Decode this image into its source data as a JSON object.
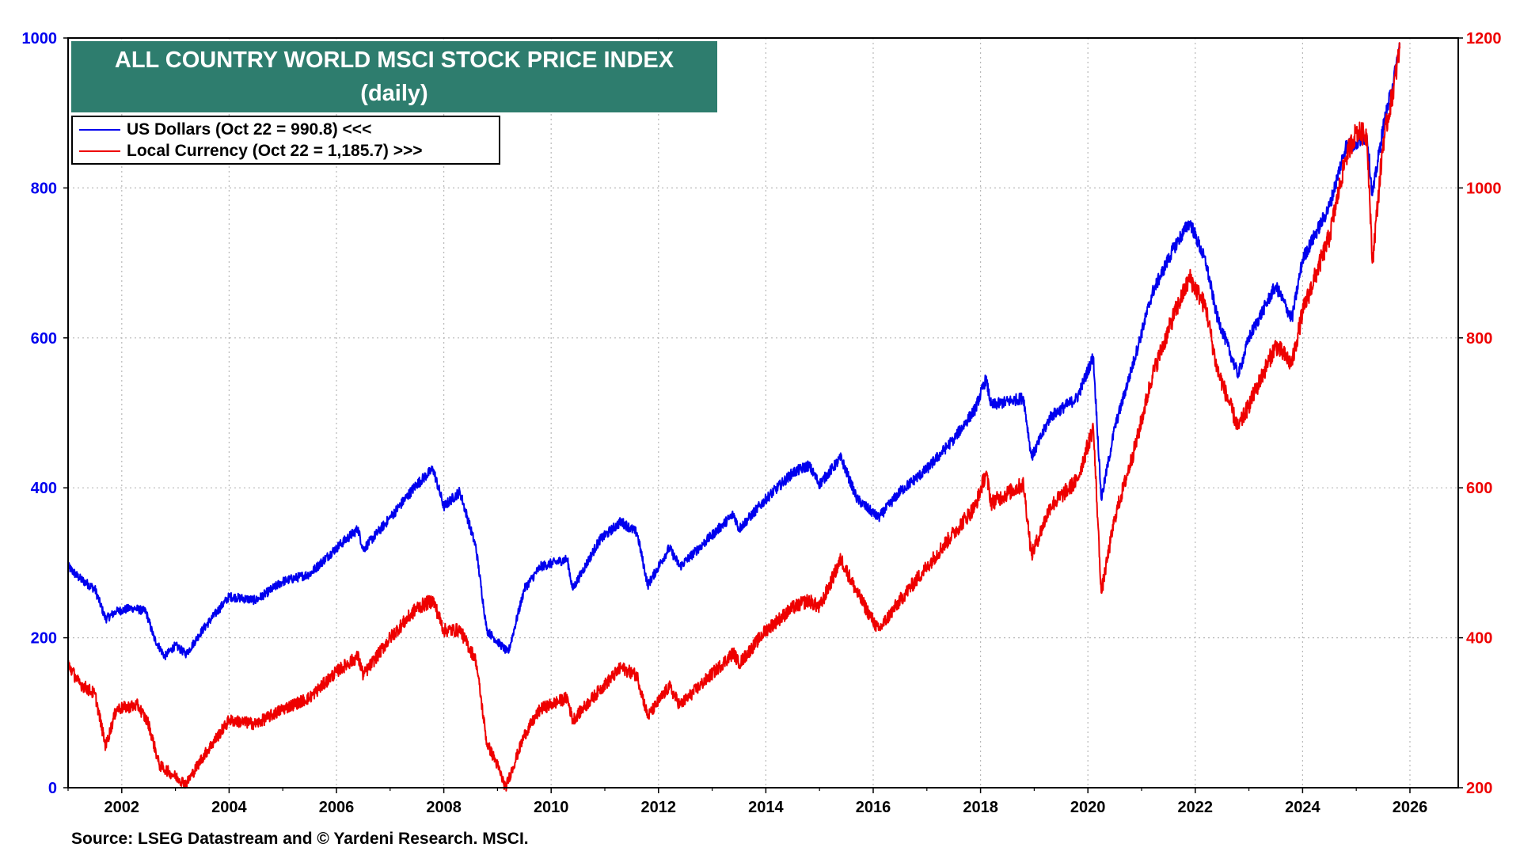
{
  "chart_data": {
    "type": "line",
    "title": "ALL COUNTRY WORLD MSCI STOCK PRICE INDEX",
    "subtitle": "(daily)",
    "source": "Source: LSEG Datastream and © Yardeni Research. MSCI.",
    "x_ticks": [
      "2002",
      "2004",
      "2006",
      "2008",
      "2010",
      "2012",
      "2014",
      "2016",
      "2018",
      "2020",
      "2022",
      "2024",
      "2026"
    ],
    "xlim": [
      2001.0,
      2026.9
    ],
    "left_axis": {
      "ylim": [
        0,
        1000
      ],
      "ticks": [
        "0",
        "200",
        "400",
        "600",
        "800",
        "1000"
      ],
      "color": "#0000ee"
    },
    "right_axis": {
      "ylim": [
        200,
        1200
      ],
      "ticks": [
        "200",
        "400",
        "600",
        "800",
        "1000",
        "1200"
      ],
      "color": "#ee0000"
    },
    "grid": true,
    "legend": {
      "placement": "top-left"
    },
    "series": [
      {
        "name": "US Dollars (Oct 22 = 990.8) <<<",
        "axis": "left",
        "color": "#0000ee",
        "points": [
          [
            2001.0,
            295
          ],
          [
            2001.2,
            280
          ],
          [
            2001.5,
            265
          ],
          [
            2001.7,
            225
          ],
          [
            2001.9,
            235
          ],
          [
            2002.2,
            240
          ],
          [
            2002.45,
            235
          ],
          [
            2002.6,
            200
          ],
          [
            2002.8,
            175
          ],
          [
            2003.0,
            190
          ],
          [
            2003.2,
            178
          ],
          [
            2003.5,
            210
          ],
          [
            2004.0,
            255
          ],
          [
            2004.5,
            250
          ],
          [
            2005.0,
            275
          ],
          [
            2005.5,
            285
          ],
          [
            2006.0,
            320
          ],
          [
            2006.4,
            345
          ],
          [
            2006.5,
            318
          ],
          [
            2007.0,
            360
          ],
          [
            2007.5,
            405
          ],
          [
            2007.8,
            425
          ],
          [
            2008.0,
            375
          ],
          [
            2008.3,
            395
          ],
          [
            2008.6,
            320
          ],
          [
            2008.8,
            210
          ],
          [
            2009.0,
            195
          ],
          [
            2009.2,
            180
          ],
          [
            2009.5,
            265
          ],
          [
            2009.8,
            295
          ],
          [
            2010.3,
            305
          ],
          [
            2010.4,
            265
          ],
          [
            2010.9,
            330
          ],
          [
            2011.3,
            355
          ],
          [
            2011.6,
            340
          ],
          [
            2011.8,
            270
          ],
          [
            2012.2,
            320
          ],
          [
            2012.4,
            295
          ],
          [
            2012.9,
            330
          ],
          [
            2013.4,
            365
          ],
          [
            2013.5,
            345
          ],
          [
            2014.0,
            385
          ],
          [
            2014.5,
            420
          ],
          [
            2014.8,
            430
          ],
          [
            2015.0,
            405
          ],
          [
            2015.4,
            440
          ],
          [
            2015.7,
            385
          ],
          [
            2016.1,
            360
          ],
          [
            2016.5,
            395
          ],
          [
            2017.0,
            425
          ],
          [
            2017.5,
            465
          ],
          [
            2017.9,
            505
          ],
          [
            2018.1,
            545
          ],
          [
            2018.2,
            510
          ],
          [
            2018.8,
            520
          ],
          [
            2018.95,
            440
          ],
          [
            2019.3,
            495
          ],
          [
            2019.8,
            520
          ],
          [
            2020.1,
            575
          ],
          [
            2020.25,
            385
          ],
          [
            2020.5,
            480
          ],
          [
            2020.9,
            580
          ],
          [
            2021.2,
            660
          ],
          [
            2021.6,
            720
          ],
          [
            2021.9,
            755
          ],
          [
            2022.2,
            700
          ],
          [
            2022.4,
            630
          ],
          [
            2022.8,
            550
          ],
          [
            2023.0,
            600
          ],
          [
            2023.5,
            670
          ],
          [
            2023.8,
            625
          ],
          [
            2024.0,
            705
          ],
          [
            2024.5,
            775
          ],
          [
            2024.8,
            855
          ],
          [
            2025.0,
            860
          ],
          [
            2025.2,
            870
          ],
          [
            2025.3,
            790
          ],
          [
            2025.5,
            880
          ],
          [
            2025.7,
            945
          ],
          [
            2025.81,
            991
          ]
        ]
      },
      {
        "name": "Local Currency (Oct 22 = 1,185.7) >>>",
        "axis": "right",
        "color": "#ee0000",
        "points": [
          [
            2001.0,
            365
          ],
          [
            2001.2,
            340
          ],
          [
            2001.5,
            325
          ],
          [
            2001.7,
            255
          ],
          [
            2001.9,
            305
          ],
          [
            2002.3,
            310
          ],
          [
            2002.5,
            285
          ],
          [
            2002.7,
            230
          ],
          [
            2002.9,
            220
          ],
          [
            2003.2,
            205
          ],
          [
            2003.5,
            240
          ],
          [
            2004.0,
            290
          ],
          [
            2004.5,
            285
          ],
          [
            2005.0,
            305
          ],
          [
            2005.5,
            320
          ],
          [
            2006.0,
            355
          ],
          [
            2006.4,
            375
          ],
          [
            2006.5,
            350
          ],
          [
            2007.0,
            400
          ],
          [
            2007.5,
            440
          ],
          [
            2007.8,
            450
          ],
          [
            2008.0,
            410
          ],
          [
            2008.3,
            410
          ],
          [
            2008.6,
            370
          ],
          [
            2008.8,
            260
          ],
          [
            2009.0,
            230
          ],
          [
            2009.15,
            200
          ],
          [
            2009.5,
            270
          ],
          [
            2009.8,
            305
          ],
          [
            2010.3,
            320
          ],
          [
            2010.4,
            290
          ],
          [
            2010.9,
            330
          ],
          [
            2011.3,
            360
          ],
          [
            2011.6,
            350
          ],
          [
            2011.8,
            295
          ],
          [
            2012.2,
            335
          ],
          [
            2012.4,
            310
          ],
          [
            2012.9,
            345
          ],
          [
            2013.4,
            380
          ],
          [
            2013.5,
            365
          ],
          [
            2014.0,
            410
          ],
          [
            2014.5,
            440
          ],
          [
            2014.8,
            450
          ],
          [
            2015.0,
            440
          ],
          [
            2015.4,
            505
          ],
          [
            2015.7,
            460
          ],
          [
            2016.1,
            410
          ],
          [
            2016.5,
            450
          ],
          [
            2017.0,
            495
          ],
          [
            2017.5,
            540
          ],
          [
            2017.9,
            575
          ],
          [
            2018.1,
            620
          ],
          [
            2018.2,
            580
          ],
          [
            2018.8,
            605
          ],
          [
            2018.95,
            510
          ],
          [
            2019.3,
            575
          ],
          [
            2019.8,
            610
          ],
          [
            2020.1,
            680
          ],
          [
            2020.25,
            460
          ],
          [
            2020.5,
            560
          ],
          [
            2020.9,
            660
          ],
          [
            2021.2,
            750
          ],
          [
            2021.6,
            830
          ],
          [
            2021.9,
            880
          ],
          [
            2022.2,
            840
          ],
          [
            2022.4,
            760
          ],
          [
            2022.8,
            680
          ],
          [
            2023.0,
            710
          ],
          [
            2023.5,
            790
          ],
          [
            2023.8,
            765
          ],
          [
            2024.0,
            835
          ],
          [
            2024.5,
            935
          ],
          [
            2024.8,
            1040
          ],
          [
            2025.0,
            1075
          ],
          [
            2025.2,
            1070
          ],
          [
            2025.3,
            900
          ],
          [
            2025.5,
            1060
          ],
          [
            2025.7,
            1135
          ],
          [
            2025.81,
            1186
          ]
        ]
      }
    ]
  }
}
